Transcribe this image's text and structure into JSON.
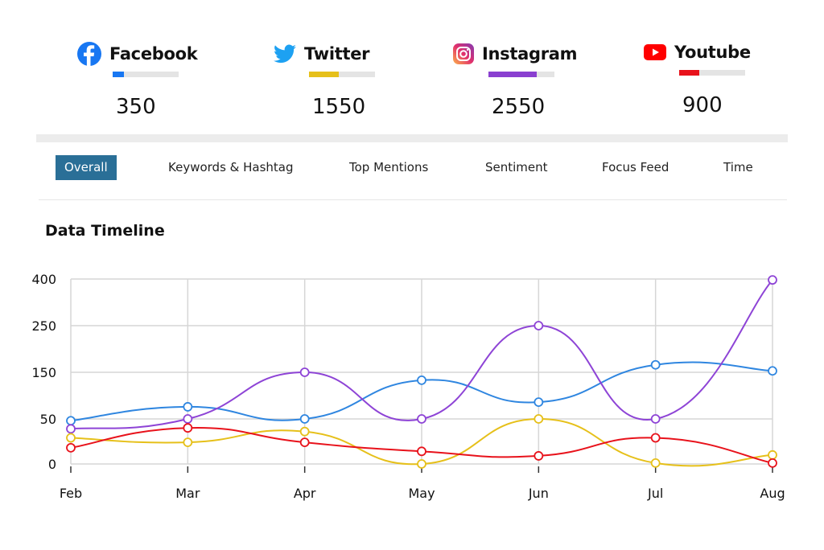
{
  "stats": [
    {
      "name": "Facebook",
      "value": "350",
      "icon": "facebook-icon",
      "color": "#1877f2",
      "fill": 0.17
    },
    {
      "name": "Twitter",
      "value": "1550",
      "icon": "twitter-icon",
      "color": "#e6c01a",
      "fill": 0.45
    },
    {
      "name": "Instagram",
      "value": "2550",
      "icon": "instagram-icon",
      "color": "#8a3fd0",
      "fill": 0.73
    },
    {
      "name": "Youtube",
      "value": "900",
      "icon": "youtube-icon",
      "color": "#e8121b",
      "fill": 0.3
    }
  ],
  "tabs": [
    {
      "label": "Overall",
      "active": true
    },
    {
      "label": "Keywords & Hashtag"
    },
    {
      "label": "Top Mentions"
    },
    {
      "label": "Sentiment"
    },
    {
      "label": "Focus Feed"
    },
    {
      "label": "Time"
    }
  ],
  "chart_data": {
    "type": "line",
    "title": "Data Timeline",
    "categories": [
      "Feb",
      "Mar",
      "Apr",
      "May",
      "Jun",
      "Jul",
      "Aug"
    ],
    "yticks": [
      0,
      50,
      150,
      250,
      400
    ],
    "ylim": [
      0,
      400
    ],
    "grid": true,
    "smooth": true,
    "series": [
      {
        "color": "#2f86e0",
        "values": [
          48,
          76,
          50,
          133,
          86,
          166,
          153
        ]
      },
      {
        "color": "#8e44d6",
        "values": [
          39,
          50,
          150,
          50,
          250,
          50,
          397
        ]
      },
      {
        "color": "#e6c01a",
        "values": [
          29,
          24,
          36,
          0,
          50,
          1,
          10
        ]
      },
      {
        "color": "#e8121b",
        "values": [
          18,
          40,
          24,
          14,
          9,
          29,
          1
        ]
      }
    ]
  }
}
